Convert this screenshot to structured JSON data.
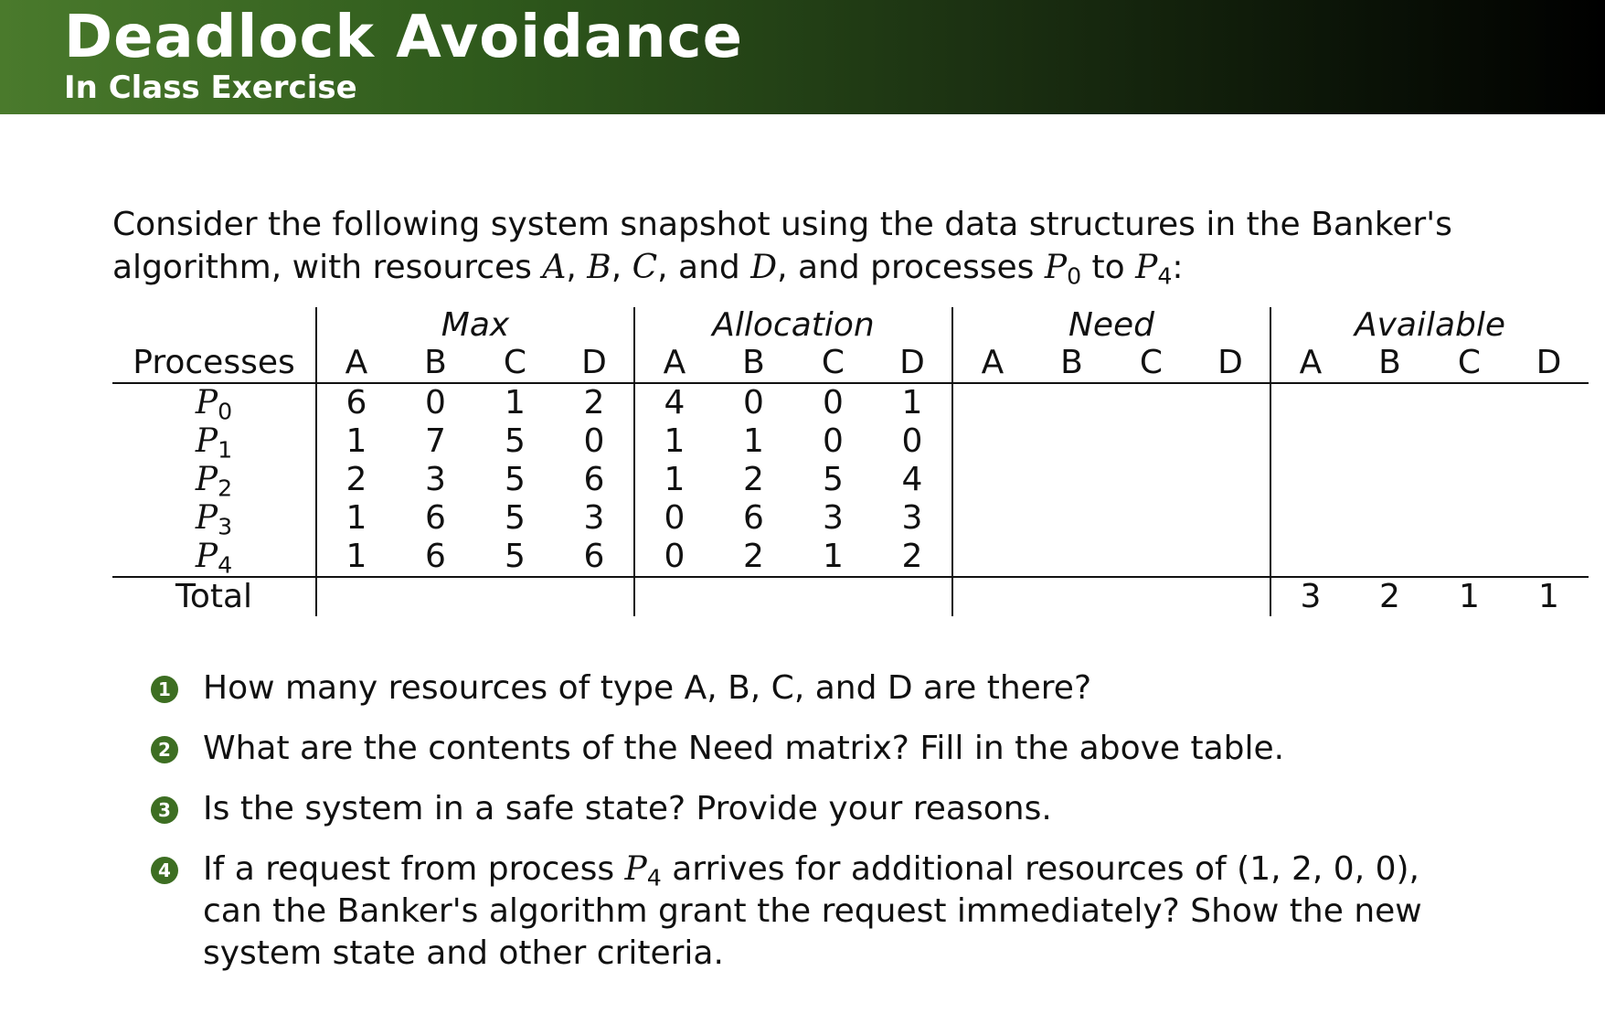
{
  "header": {
    "title": "Deadlock Avoidance",
    "subtitle": "In Class Exercise",
    "accent_color": "#4a7a2c"
  },
  "intro": {
    "t1": "Consider the following system snapshot using the data structures in the Banker's",
    "t2": "algorithm, with resources ",
    "rA": "A",
    "t3": ", ",
    "rB": "B",
    "t4": ", ",
    "rC": "C",
    "t5": ", and ",
    "rD": "D",
    "t6": ", and processes ",
    "p_start": "P",
    "p_start_sub": "0",
    "t7": " to ",
    "p_end": "P",
    "p_end_sub": "4",
    "t8": ":"
  },
  "table": {
    "groups": [
      "Max",
      "Allocation",
      "Need",
      "Available"
    ],
    "processes_header": "Processes",
    "resources": [
      "A",
      "B",
      "C",
      "D"
    ],
    "rows": [
      {
        "p": "P",
        "sub": "0",
        "max": [
          "6",
          "0",
          "1",
          "2"
        ],
        "alloc": [
          "4",
          "0",
          "0",
          "1"
        ]
      },
      {
        "p": "P",
        "sub": "1",
        "max": [
          "1",
          "7",
          "5",
          "0"
        ],
        "alloc": [
          "1",
          "1",
          "0",
          "0"
        ]
      },
      {
        "p": "P",
        "sub": "2",
        "max": [
          "2",
          "3",
          "5",
          "6"
        ],
        "alloc": [
          "1",
          "2",
          "5",
          "4"
        ]
      },
      {
        "p": "P",
        "sub": "3",
        "max": [
          "1",
          "6",
          "5",
          "3"
        ],
        "alloc": [
          "0",
          "6",
          "3",
          "3"
        ]
      },
      {
        "p": "P",
        "sub": "4",
        "max": [
          "1",
          "6",
          "5",
          "6"
        ],
        "alloc": [
          "0",
          "2",
          "1",
          "2"
        ]
      }
    ],
    "total_label": "Total",
    "available": [
      "3",
      "2",
      "1",
      "1"
    ]
  },
  "questions": [
    {
      "num": "1",
      "t1": "How many resources of type A, B, C, and D are there?"
    },
    {
      "num": "2",
      "t1": "What are the contents of the Need matrix? Fill in the above table."
    },
    {
      "num": "3",
      "t1": "Is the system in a safe state? Provide your reasons."
    },
    {
      "num": "4",
      "t1": "If a request from process ",
      "p": "P",
      "p_sub": "4",
      "t2": " arrives for additional resources of ",
      "vec": "(1, 2, 0, 0)",
      "t3": ", can the Banker's algorithm grant the request immediately? Show the new system state and other criteria."
    }
  ]
}
